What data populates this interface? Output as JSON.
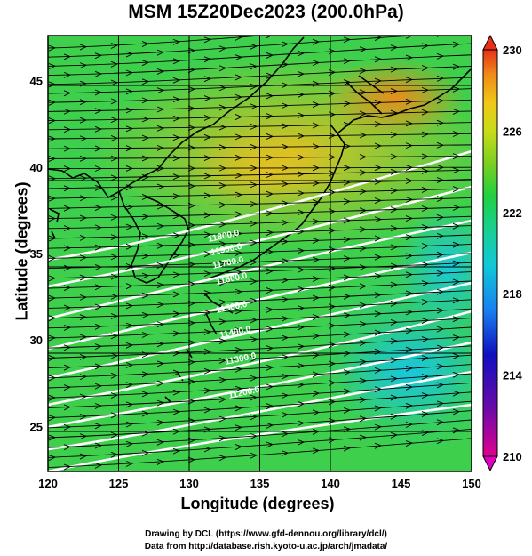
{
  "title": "MSM 15Z20Dec2023 (200.0hPa)",
  "xlabel": "Longitude (degrees)",
  "ylabel": "Latitude  (degrees)",
  "credits": [
    "Drawing by DCL (https://www.gfd-dennou.org/library/dcl/)",
    "Data from http://database.rish.kyoto-u.ac.jp/arch/jmadata/"
  ],
  "colorbar": {
    "ticks": [
      "230",
      "226",
      "222",
      "218",
      "214",
      "210"
    ],
    "range": [
      210,
      230
    ],
    "colors": [
      "#e00090",
      "#6a0aa8",
      "#1010c0",
      "#1880f0",
      "#10c8d8",
      "#18d090",
      "#20d040",
      "#7ad020",
      "#c8dc18",
      "#f0c818",
      "#f08a18",
      "#e83018"
    ]
  },
  "chart_data": {
    "type": "heatmap",
    "title": "MSM 15Z20Dec2023 (200.0hPa)",
    "xlabel": "Longitude (degrees)",
    "ylabel": "Latitude  (degrees)",
    "xlim": [
      120,
      150
    ],
    "ylim": [
      22.4,
      47.6
    ],
    "xticks": [
      "120",
      "125",
      "130",
      "135",
      "140",
      "145",
      "150"
    ],
    "yticks": [
      "25",
      "30",
      "35",
      "40",
      "45"
    ],
    "colorbar_range": [
      210,
      230
    ],
    "contour_labels": [
      "11800.0",
      "11900.0",
      "11700.0",
      "11600.0",
      "11500.0",
      "11400.0",
      "11300.0",
      "11200.0"
    ],
    "grid": true,
    "vectors": "westerly wind streamlines",
    "coastlines": true
  }
}
